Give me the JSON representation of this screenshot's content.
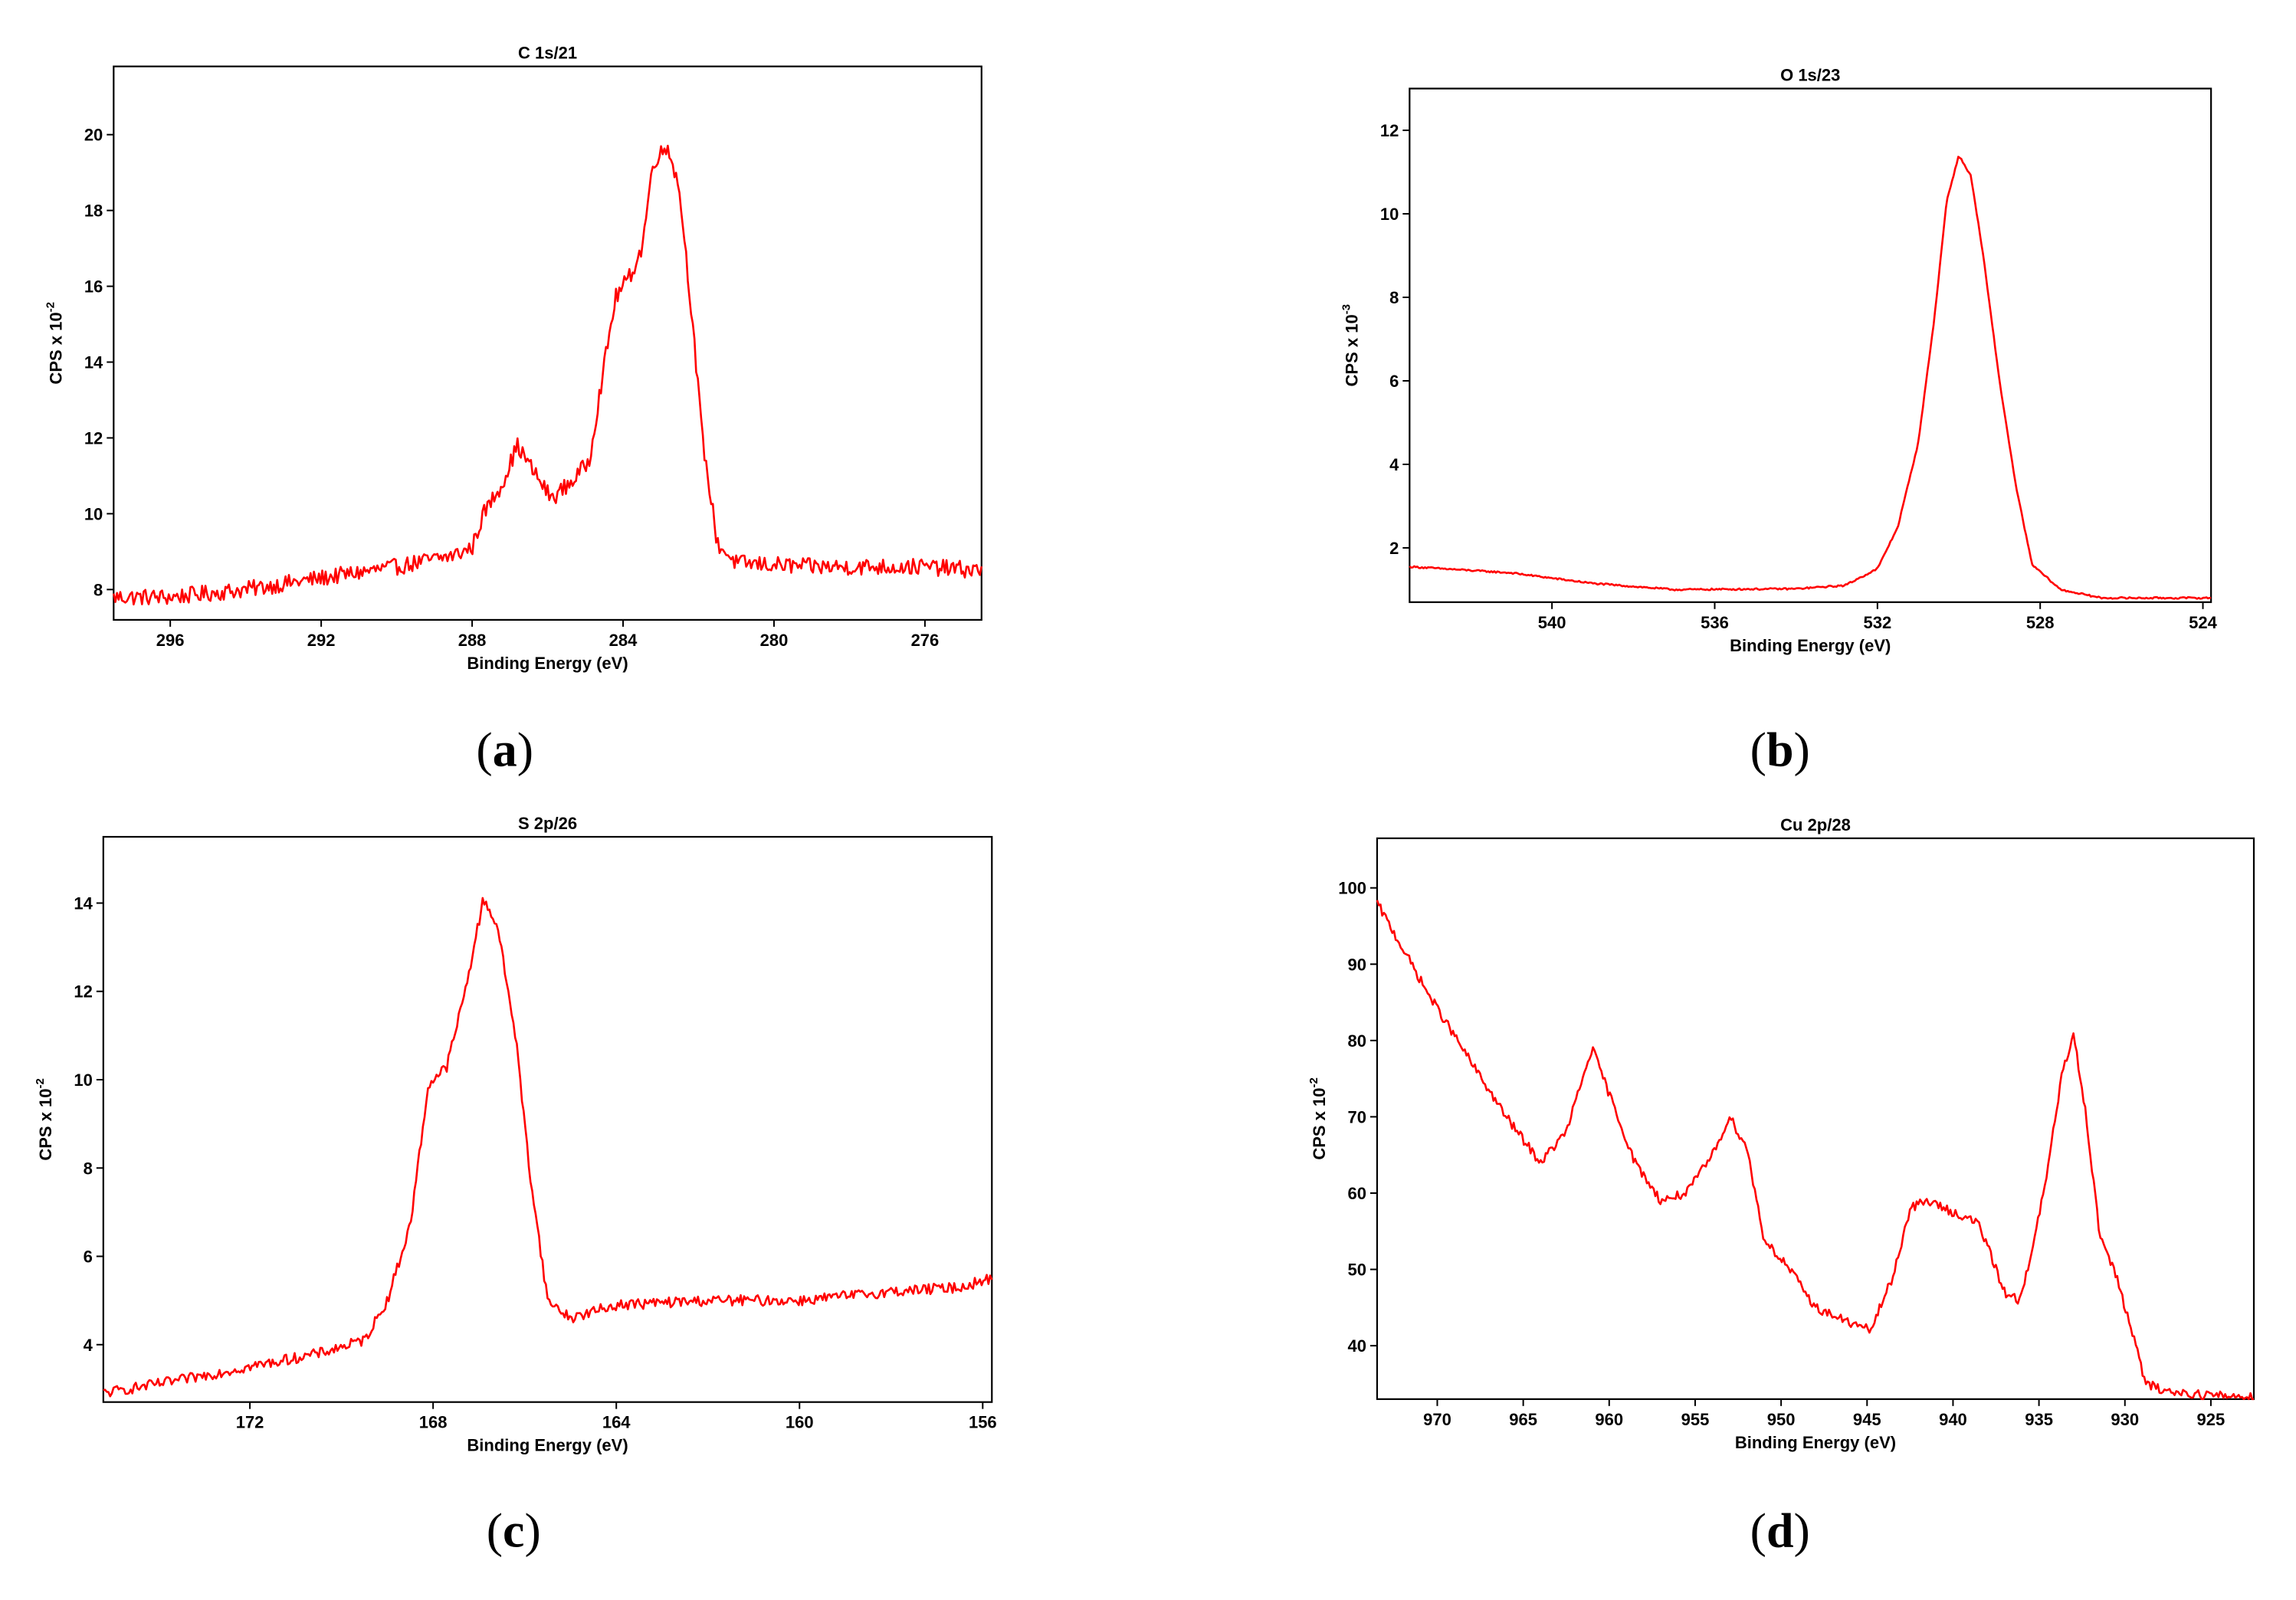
{
  "colors": {
    "series": "#ff0000",
    "axes": "#000000"
  },
  "chart_data": [
    {
      "type": "line",
      "panel_label": "a",
      "title": "C 1s/21",
      "xlabel": "Binding Energy (eV)",
      "ylabel": {
        "base": "CPS x 10",
        "exp": "-2"
      },
      "xlim": [
        297.5,
        274.5
      ],
      "ylim": [
        7.2,
        21.8
      ],
      "xticks": [
        296,
        292,
        288,
        284,
        280,
        276
      ],
      "yticks": [
        8,
        10,
        12,
        14,
        16,
        18,
        20
      ],
      "noise": 0.22,
      "series": [
        {
          "name": "C 1s",
          "points": [
            [
              297.5,
              7.8
            ],
            [
              296.0,
              7.8
            ],
            [
              294.0,
              8.0
            ],
            [
              292.0,
              8.3
            ],
            [
              290.0,
              8.6
            ],
            [
              288.5,
              8.9
            ],
            [
              288.0,
              9.1
            ],
            [
              287.7,
              10.0
            ],
            [
              287.2,
              10.8
            ],
            [
              286.8,
              11.8
            ],
            [
              286.3,
              11.0
            ],
            [
              285.9,
              10.4
            ],
            [
              285.3,
              10.9
            ],
            [
              284.9,
              11.4
            ],
            [
              284.6,
              13.3
            ],
            [
              284.2,
              15.7
            ],
            [
              283.8,
              16.3
            ],
            [
              283.5,
              17.0
            ],
            [
              283.2,
              19.3
            ],
            [
              282.8,
              19.7
            ],
            [
              282.5,
              18.5
            ],
            [
              282.2,
              15.5
            ],
            [
              281.9,
              12.0
            ],
            [
              281.5,
              9.2
            ],
            [
              281.0,
              8.7
            ],
            [
              279.0,
              8.6
            ],
            [
              276.0,
              8.6
            ],
            [
              274.5,
              8.5
            ]
          ]
        }
      ]
    },
    {
      "type": "line",
      "panel_label": "b",
      "title": "O 1s/23",
      "xlabel": "Binding Energy (eV)",
      "ylabel": {
        "base": "CPS x 10",
        "exp": "-3"
      },
      "xlim": [
        543.5,
        523.8
      ],
      "ylim": [
        0.7,
        13.0
      ],
      "xticks": [
        540,
        536,
        532,
        528,
        524
      ],
      "yticks": [
        2,
        4,
        6,
        8,
        10,
        12
      ],
      "noise": 0.02,
      "series": [
        {
          "name": "O 1s",
          "points": [
            [
              543.5,
              1.55
            ],
            [
              541.0,
              1.4
            ],
            [
              539.0,
              1.15
            ],
            [
              537.0,
              1.0
            ],
            [
              534.0,
              1.02
            ],
            [
              532.8,
              1.1
            ],
            [
              532.0,
              1.5
            ],
            [
              531.5,
              2.5
            ],
            [
              531.0,
              4.5
            ],
            [
              530.6,
              7.5
            ],
            [
              530.3,
              10.3
            ],
            [
              530.0,
              11.4
            ],
            [
              529.7,
              10.9
            ],
            [
              529.4,
              9.0
            ],
            [
              529.0,
              6.0
            ],
            [
              528.6,
              3.5
            ],
            [
              528.2,
              1.6
            ],
            [
              527.5,
              1.0
            ],
            [
              526.5,
              0.8
            ],
            [
              524.0,
              0.8
            ],
            [
              523.8,
              0.8
            ]
          ]
        }
      ]
    },
    {
      "type": "line",
      "panel_label": "c",
      "title": "S 2p/26",
      "xlabel": "Binding Energy (eV)",
      "ylabel": {
        "base": "CPS x 10",
        "exp": "-2"
      },
      "xlim": [
        175.2,
        155.8
      ],
      "ylim": [
        2.7,
        15.5
      ],
      "xticks": [
        172,
        168,
        164,
        160,
        156
      ],
      "yticks": [
        4,
        6,
        8,
        10,
        12,
        14
      ],
      "noise": 0.12,
      "series": [
        {
          "name": "S 2p",
          "points": [
            [
              175.2,
              2.9
            ],
            [
              173.5,
              3.2
            ],
            [
              172.0,
              3.5
            ],
            [
              170.5,
              3.8
            ],
            [
              169.5,
              4.1
            ],
            [
              169.0,
              5.0
            ],
            [
              168.5,
              6.7
            ],
            [
              168.1,
              9.9
            ],
            [
              167.7,
              10.3
            ],
            [
              167.3,
              12.0
            ],
            [
              166.9,
              14.1
            ],
            [
              166.6,
              13.5
            ],
            [
              166.2,
              11.0
            ],
            [
              165.9,
              8.0
            ],
            [
              165.5,
              5.0
            ],
            [
              165.0,
              4.6
            ],
            [
              164.0,
              4.9
            ],
            [
              162.0,
              5.0
            ],
            [
              160.0,
              5.0
            ],
            [
              158.0,
              5.2
            ],
            [
              156.5,
              5.3
            ],
            [
              155.8,
              5.5
            ]
          ]
        }
      ]
    },
    {
      "type": "line",
      "panel_label": "d",
      "title": "Cu 2p/28",
      "xlabel": "Binding Energy (eV)",
      "ylabel": {
        "base": "CPS x 10",
        "exp": "-2"
      },
      "xlim": [
        973.5,
        922.5
      ],
      "ylim": [
        33,
        106.5
      ],
      "xticks": [
        970,
        965,
        960,
        955,
        950,
        945,
        940,
        935,
        930,
        925
      ],
      "yticks": [
        40,
        50,
        60,
        70,
        80,
        90,
        100
      ],
      "noise": 0.6,
      "series": [
        {
          "name": "Cu 2p",
          "points": [
            [
              973.5,
              98
            ],
            [
              970.5,
              86
            ],
            [
              968.0,
              77
            ],
            [
              966.0,
              70
            ],
            [
              964.0,
              64
            ],
            [
              962.5,
              68
            ],
            [
              961.0,
              79
            ],
            [
              960.0,
              73
            ],
            [
              958.5,
              64
            ],
            [
              957.0,
              59
            ],
            [
              955.5,
              60
            ],
            [
              954.0,
              65
            ],
            [
              953.0,
              70
            ],
            [
              952.0,
              66
            ],
            [
              951.0,
              54
            ],
            [
              949.5,
              50
            ],
            [
              948.0,
              45
            ],
            [
              946.0,
              43
            ],
            [
              944.8,
              42
            ],
            [
              943.5,
              49
            ],
            [
              942.5,
              58
            ],
            [
              941.5,
              59
            ],
            [
              940.0,
              57.5
            ],
            [
              938.5,
              56
            ],
            [
              937.0,
              47
            ],
            [
              936.2,
              46
            ],
            [
              935.5,
              51
            ],
            [
              934.5,
              63
            ],
            [
              933.7,
              75
            ],
            [
              933.0,
              81
            ],
            [
              932.3,
              71
            ],
            [
              931.5,
              55
            ],
            [
              930.5,
              49
            ],
            [
              929.6,
              42
            ],
            [
              928.8,
              35
            ],
            [
              927.5,
              34
            ],
            [
              925.0,
              33.5
            ],
            [
              922.5,
              33.3
            ]
          ]
        }
      ]
    }
  ]
}
